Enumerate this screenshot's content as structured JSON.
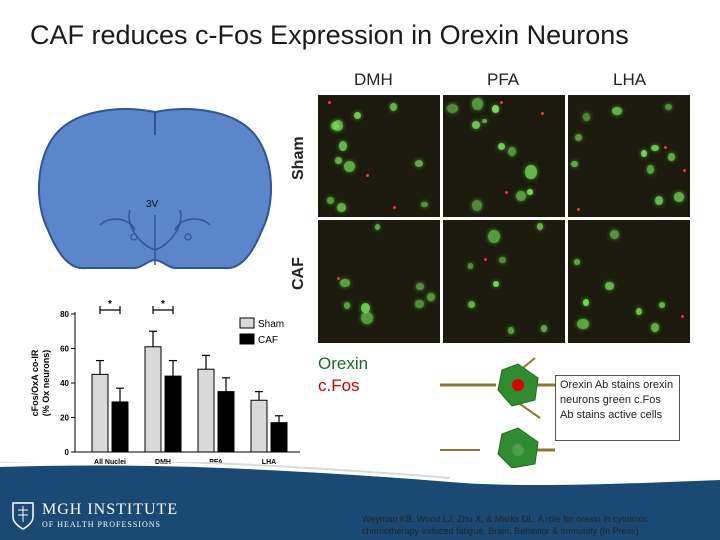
{
  "slide": {
    "title": "CAF reduces c-Fos Expression in Orexin Neurons",
    "columns": [
      "DMH",
      "PFA",
      "LHA"
    ],
    "rows": [
      "Sham",
      "CAF"
    ],
    "brain_label": "3V",
    "legend_orexin": "Orexin",
    "legend_cfos": "c.Fos",
    "note": "Orexin Ab stains orexin neurons green c.Fos Ab stains active cells",
    "citation": "Weyman KB, Wood LJ, Zhu X, & Marks DL. A role for orexin in cytotoxic chemotherapy-induced fatigue. Brain, Behavior & Immunity (In Press).",
    "logo_main": "MGH INSTITUTE",
    "logo_sub": "OF HEALTH PROFESSIONS"
  },
  "chart_data": {
    "type": "bar",
    "categories": [
      "All Nuclei",
      "DMH",
      "PFA",
      "LHA"
    ],
    "ylabel_line1": "cFos/OxA co-IR",
    "ylabel_line2": "(% Ox neurons)",
    "ylim": [
      0,
      80
    ],
    "yticks": [
      0,
      20,
      40,
      60,
      80
    ],
    "series": [
      {
        "name": "Sham",
        "values": [
          45,
          61,
          48,
          30
        ],
        "errors": [
          8,
          9,
          8,
          5
        ],
        "color": "#d9d9d9"
      },
      {
        "name": "CAF",
        "values": [
          29,
          44,
          35,
          17
        ],
        "errors": [
          8,
          9,
          8,
          4
        ],
        "color": "#000000"
      }
    ],
    "significance": [
      "*",
      "*"
    ]
  },
  "colors": {
    "brain": "#5b86c9",
    "brain_stroke": "#2f5597",
    "footer": "#1a4a73",
    "neuron_fill": "#2e8b2e",
    "neuron_line": "#8a7a2a",
    "neuron_active": "#e00000"
  }
}
